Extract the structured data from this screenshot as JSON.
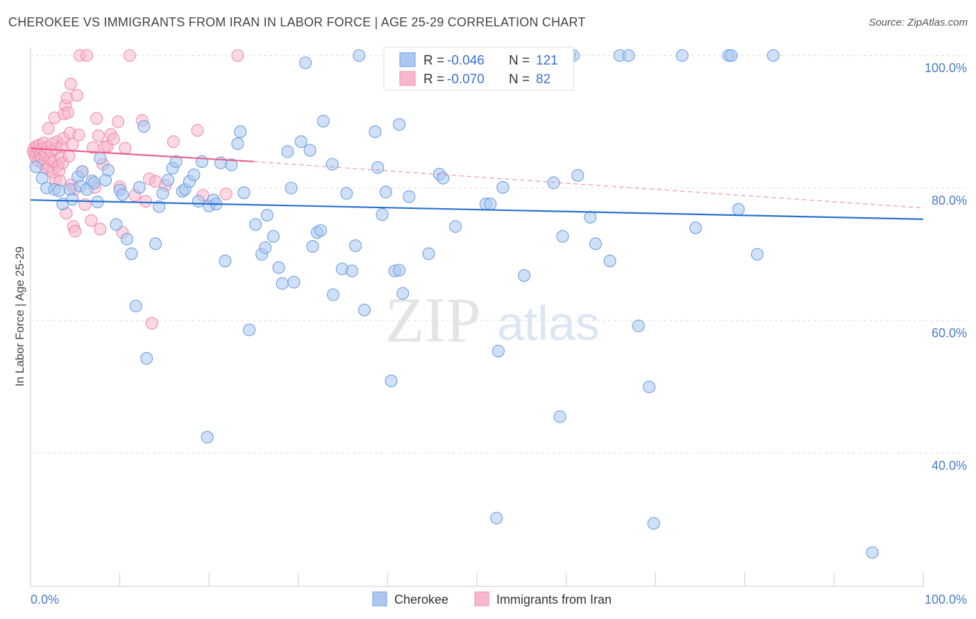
{
  "header": {
    "title": "CHEROKEE VS IMMIGRANTS FROM IRAN IN LABOR FORCE | AGE 25-29 CORRELATION CHART",
    "source": "Source: ZipAtlas.com"
  },
  "watermark": {
    "zip": "ZIP",
    "atlas": "atlas"
  },
  "colors": {
    "cherokee_fill": "#aac8f0",
    "cherokee_stroke": "#6f9fe0",
    "cherokee_line": "#2a6fd1",
    "iran_fill": "#f7b8cc",
    "iran_stroke": "#ee8fae",
    "iran_line": "#e8608e",
    "tick_text": "#4a7cc9"
  },
  "legend": {
    "rows": [
      {
        "r_label": "R = ",
        "r_value": "-0.046",
        "n_label": "N = ",
        "n_value": "121"
      },
      {
        "r_label": "R = ",
        "r_value": "-0.070",
        "n_label": "N = ",
        "n_value": "82"
      }
    ]
  },
  "bottom_legend": {
    "series1": "Cherokee",
    "series2": "Immigrants from Iran"
  },
  "chart_data": {
    "type": "scatter",
    "title": "CHEROKEE VS IMMIGRANTS FROM IRAN IN LABOR FORCE | AGE 25-29 CORRELATION CHART",
    "xlabel": "",
    "ylabel": "In Labor Force | Age 25-29",
    "xlim": [
      0,
      100
    ],
    "ylim": [
      20,
      102
    ],
    "x_tick_labels": [
      "0.0%",
      "100.0%"
    ],
    "y_ticks": [
      40,
      60,
      80,
      100
    ],
    "y_tick_labels": [
      "40.0%",
      "60.0%",
      "80.0%",
      "100.0%"
    ],
    "legend_position": "top-center",
    "series": [
      {
        "name": "Cherokee",
        "r": -0.046,
        "n": 121,
        "trend": {
          "x": [
            0,
            100
          ],
          "y": [
            78.2,
            75.3
          ]
        },
        "points": [
          [
            0.6,
            83.2
          ],
          [
            1.3,
            81.5
          ],
          [
            1.8,
            80.0
          ],
          [
            2.7,
            79.8
          ],
          [
            3.2,
            79.6
          ],
          [
            3.6,
            77.6
          ],
          [
            4.4,
            79.8
          ],
          [
            4.7,
            78.3
          ],
          [
            5.3,
            81.7
          ],
          [
            5.6,
            80.3
          ],
          [
            5.8,
            82.5
          ],
          [
            6.3,
            79.8
          ],
          [
            6.9,
            81.1
          ],
          [
            7.1,
            80.8
          ],
          [
            7.5,
            77.9
          ],
          [
            7.8,
            84.5
          ],
          [
            8.4,
            81.2
          ],
          [
            8.7,
            82.7
          ],
          [
            9.6,
            74.5
          ],
          [
            10.0,
            79.7
          ],
          [
            10.3,
            79.0
          ],
          [
            10.8,
            72.3
          ],
          [
            11.3,
            70.1
          ],
          [
            11.8,
            62.2
          ],
          [
            12.2,
            80.1
          ],
          [
            12.7,
            89.3
          ],
          [
            13.0,
            54.3
          ],
          [
            14.0,
            71.6
          ],
          [
            14.4,
            77.2
          ],
          [
            14.8,
            79.2
          ],
          [
            15.4,
            81.2
          ],
          [
            15.9,
            83.0
          ],
          [
            16.3,
            84.0
          ],
          [
            17.0,
            79.5
          ],
          [
            17.3,
            79.8
          ],
          [
            17.8,
            81.0
          ],
          [
            18.3,
            82.0
          ],
          [
            18.8,
            78.0
          ],
          [
            19.2,
            84.0
          ],
          [
            19.8,
            42.4
          ],
          [
            20.0,
            77.3
          ],
          [
            20.5,
            78.2
          ],
          [
            20.8,
            77.6
          ],
          [
            21.3,
            83.8
          ],
          [
            21.8,
            69.0
          ],
          [
            22.5,
            83.5
          ],
          [
            23.2,
            86.7
          ],
          [
            23.5,
            88.5
          ],
          [
            23.9,
            79.3
          ],
          [
            24.5,
            58.6
          ],
          [
            25.2,
            74.5
          ],
          [
            25.9,
            70.0
          ],
          [
            26.3,
            71.0
          ],
          [
            26.5,
            75.9
          ],
          [
            27.2,
            72.7
          ],
          [
            27.8,
            68.0
          ],
          [
            28.2,
            65.6
          ],
          [
            28.8,
            85.5
          ],
          [
            29.2,
            80.0
          ],
          [
            29.5,
            65.8
          ],
          [
            30.3,
            87.0
          ],
          [
            30.8,
            98.9
          ],
          [
            31.3,
            85.7
          ],
          [
            31.6,
            71.2
          ],
          [
            32.1,
            73.3
          ],
          [
            32.5,
            73.6
          ],
          [
            32.8,
            90.1
          ],
          [
            33.9,
            63.9
          ],
          [
            33.8,
            83.6
          ],
          [
            34.9,
            67.8
          ],
          [
            35.4,
            79.2
          ],
          [
            36.0,
            67.5
          ],
          [
            36.4,
            71.3
          ],
          [
            36.8,
            100.0
          ],
          [
            37.4,
            61.6
          ],
          [
            38.6,
            88.5
          ],
          [
            38.9,
            83.1
          ],
          [
            39.4,
            76.0
          ],
          [
            39.8,
            79.4
          ],
          [
            40.4,
            50.9
          ],
          [
            40.8,
            67.5
          ],
          [
            41.3,
            67.6
          ],
          [
            41.7,
            64.1
          ],
          [
            41.3,
            89.6
          ],
          [
            42.4,
            78.7
          ],
          [
            44.6,
            70.1
          ],
          [
            45.8,
            82.1
          ],
          [
            46.2,
            81.5
          ],
          [
            47.6,
            74.2
          ],
          [
            51.0,
            77.6
          ],
          [
            51.5,
            77.6
          ],
          [
            52.2,
            30.2
          ],
          [
            52.4,
            55.4
          ],
          [
            52.9,
            80.1
          ],
          [
            53.3,
            100.0
          ],
          [
            53.8,
            100.0
          ],
          [
            55.3,
            66.8
          ],
          [
            55.9,
            97.8
          ],
          [
            58.1,
            100.0
          ],
          [
            58.6,
            80.8
          ],
          [
            59.3,
            45.5
          ],
          [
            59.6,
            72.7
          ],
          [
            60.4,
            100.0
          ],
          [
            60.8,
            100.0
          ],
          [
            61.3,
            81.9
          ],
          [
            62.7,
            75.6
          ],
          [
            63.3,
            71.6
          ],
          [
            64.9,
            69.0
          ],
          [
            66.0,
            100.0
          ],
          [
            67.0,
            100.0
          ],
          [
            68.1,
            59.2
          ],
          [
            69.3,
            50.0
          ],
          [
            69.8,
            29.4
          ],
          [
            73.0,
            100.0
          ],
          [
            74.5,
            74.0
          ],
          [
            78.2,
            100.0
          ],
          [
            78.5,
            100.0
          ],
          [
            79.3,
            76.8
          ],
          [
            81.4,
            70.0
          ],
          [
            83.2,
            100.0
          ],
          [
            94.3,
            25.0
          ]
        ]
      },
      {
        "name": "Immigrants from Iran",
        "r": -0.07,
        "n": 82,
        "trend": {
          "x": [
            0,
            25
          ],
          "y": [
            86.0,
            84.0
          ],
          "extension_x": [
            25,
            100
          ],
          "extension_y": [
            84.0,
            77.0
          ]
        },
        "points": [
          [
            0.3,
            85.5
          ],
          [
            0.4,
            86.0
          ],
          [
            0.5,
            84.8
          ],
          [
            0.6,
            85.2
          ],
          [
            0.7,
            86.3
          ],
          [
            0.8,
            84.1
          ],
          [
            0.9,
            85.8
          ],
          [
            1.0,
            86.5
          ],
          [
            1.1,
            85.0
          ],
          [
            1.2,
            84.5
          ],
          [
            1.3,
            85.9
          ],
          [
            1.4,
            83.7
          ],
          [
            1.5,
            86.8
          ],
          [
            1.6,
            84.9
          ],
          [
            1.7,
            85.4
          ],
          [
            1.8,
            82.9
          ],
          [
            1.9,
            86.1
          ],
          [
            2.0,
            89.0
          ],
          [
            2.1,
            83.2
          ],
          [
            2.2,
            84.3
          ],
          [
            2.3,
            85.5
          ],
          [
            2.4,
            86.7
          ],
          [
            2.5,
            82.4
          ],
          [
            2.6,
            84.0
          ],
          [
            2.7,
            90.6
          ],
          [
            2.8,
            81.3
          ],
          [
            2.9,
            85.9
          ],
          [
            3.0,
            87.0
          ],
          [
            3.1,
            83.4
          ],
          [
            3.2,
            82.6
          ],
          [
            3.3,
            81.1
          ],
          [
            3.4,
            84.6
          ],
          [
            3.5,
            86.3
          ],
          [
            3.6,
            83.8
          ],
          [
            3.7,
            87.5
          ],
          [
            3.8,
            91.2
          ],
          [
            3.9,
            92.5
          ],
          [
            4.0,
            76.2
          ],
          [
            4.1,
            93.6
          ],
          [
            4.2,
            91.4
          ],
          [
            4.3,
            84.8
          ],
          [
            4.4,
            88.3
          ],
          [
            4.5,
            95.7
          ],
          [
            4.6,
            80.5
          ],
          [
            4.7,
            86.6
          ],
          [
            4.8,
            74.2
          ],
          [
            4.9,
            79.8
          ],
          [
            5.0,
            73.5
          ],
          [
            5.2,
            94.0
          ],
          [
            5.4,
            88.0
          ],
          [
            5.5,
            100.0
          ],
          [
            5.8,
            82.5
          ],
          [
            6.1,
            77.5
          ],
          [
            6.3,
            100.0
          ],
          [
            6.8,
            75.1
          ],
          [
            7.0,
            86.1
          ],
          [
            7.2,
            80.1
          ],
          [
            7.4,
            90.5
          ],
          [
            7.6,
            87.9
          ],
          [
            7.8,
            73.8
          ],
          [
            8.1,
            83.6
          ],
          [
            8.3,
            86.2
          ],
          [
            8.6,
            86.3
          ],
          [
            9.0,
            88.1
          ],
          [
            9.3,
            87.4
          ],
          [
            9.8,
            90.0
          ],
          [
            10.0,
            80.2
          ],
          [
            10.3,
            73.3
          ],
          [
            10.6,
            86.0
          ],
          [
            11.1,
            100.0
          ],
          [
            11.7,
            78.9
          ],
          [
            12.5,
            90.2
          ],
          [
            12.9,
            78.0
          ],
          [
            13.3,
            81.4
          ],
          [
            13.6,
            59.6
          ],
          [
            14.0,
            81.0
          ],
          [
            15.1,
            80.4
          ],
          [
            16.0,
            87.0
          ],
          [
            18.7,
            88.7
          ],
          [
            19.3,
            78.9
          ],
          [
            21.9,
            79.1
          ],
          [
            23.2,
            100.0
          ]
        ]
      }
    ]
  }
}
